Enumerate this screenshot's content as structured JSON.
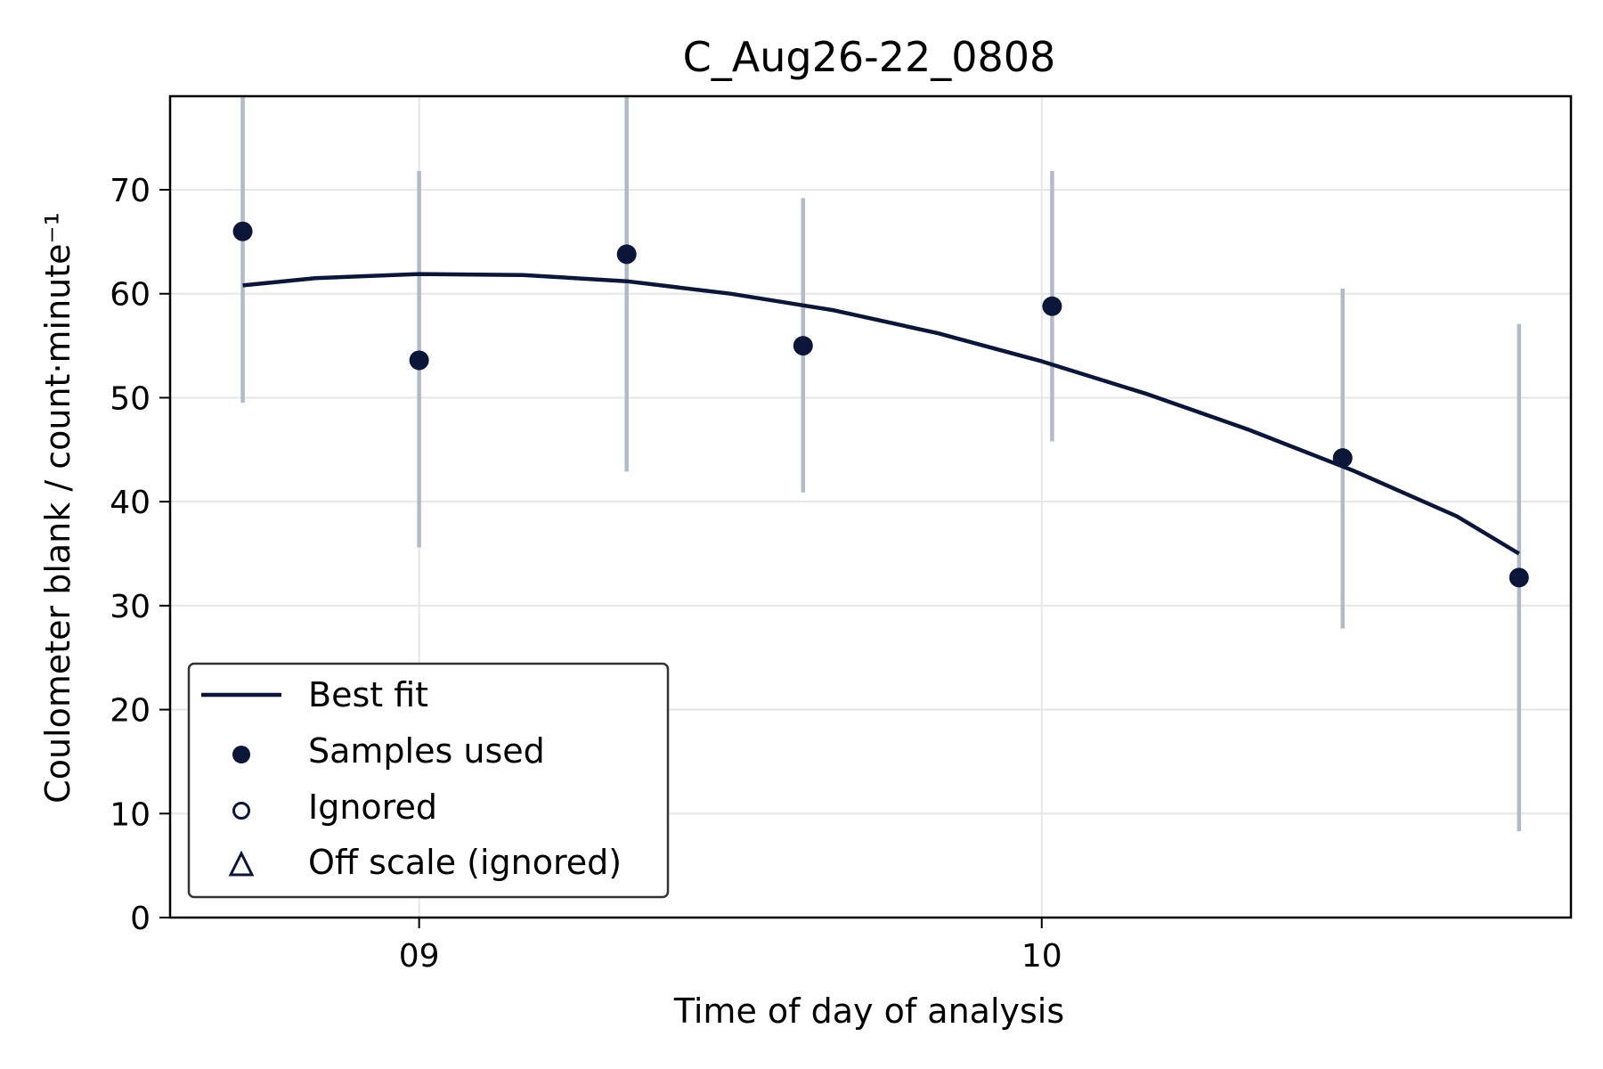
{
  "chart_data": {
    "type": "scatter",
    "title": "C_Aug26-22_0808",
    "xlabel": "Time of day of analysis",
    "ylabel": "Coulometer blank / count·minute⁻¹",
    "xlim": [
      "08:36",
      "10:51"
    ],
    "ylim": [
      0,
      79
    ],
    "x_ticks": [
      {
        "value": "09:00",
        "label": "09"
      },
      {
        "value": "10:00",
        "label": "10"
      }
    ],
    "y_ticks": [
      0,
      10,
      20,
      30,
      40,
      50,
      60,
      70
    ],
    "grid": true,
    "legend": {
      "placement": "lower-left",
      "entries": [
        {
          "label": "Best fit",
          "marker": "line"
        },
        {
          "label": "Samples used",
          "marker": "filled-circle"
        },
        {
          "label": "Ignored",
          "marker": "open-circle"
        },
        {
          "label": "Off scale (ignored)",
          "marker": "open-triangle"
        }
      ]
    },
    "series": [
      {
        "name": "Samples used",
        "kind": "points",
        "points": [
          {
            "x": "08:43",
            "y": 66.0,
            "yerr_low": 49.5,
            "yerr_high": 79
          },
          {
            "x": "09:00",
            "y": 53.6,
            "yerr_low": 35.6,
            "yerr_high": 71.8
          },
          {
            "x": "09:20",
            "y": 63.8,
            "yerr_low": 42.9,
            "yerr_high": 79
          },
          {
            "x": "09:37",
            "y": 55.0,
            "yerr_low": 40.9,
            "yerr_high": 69.2
          },
          {
            "x": "10:01",
            "y": 58.8,
            "yerr_low": 45.8,
            "yerr_high": 71.8
          },
          {
            "x": "10:29",
            "y": 44.2,
            "yerr_low": 27.8,
            "yerr_high": 60.5
          },
          {
            "x": "10:46",
            "y": 32.7,
            "yerr_low": 8.3,
            "yerr_high": 57.1
          }
        ]
      },
      {
        "name": "Best fit",
        "kind": "line",
        "points": [
          {
            "x": "08:43",
            "y": 60.8
          },
          {
            "x": "08:50",
            "y": 61.5
          },
          {
            "x": "09:00",
            "y": 61.9
          },
          {
            "x": "09:10",
            "y": 61.8
          },
          {
            "x": "09:20",
            "y": 61.2
          },
          {
            "x": "09:30",
            "y": 60.0
          },
          {
            "x": "09:40",
            "y": 58.4
          },
          {
            "x": "09:50",
            "y": 56.2
          },
          {
            "x": "10:00",
            "y": 53.5
          },
          {
            "x": "10:10",
            "y": 50.4
          },
          {
            "x": "10:20",
            "y": 46.9
          },
          {
            "x": "10:30",
            "y": 43.0
          },
          {
            "x": "10:40",
            "y": 38.6
          },
          {
            "x": "10:46",
            "y": 35.0
          }
        ]
      }
    ],
    "colors": {
      "marker": "#0b1638",
      "line": "#0b1638",
      "errorbar": "#b2b9c7",
      "grid": "#e6e6e6",
      "axis": "#000000"
    }
  }
}
